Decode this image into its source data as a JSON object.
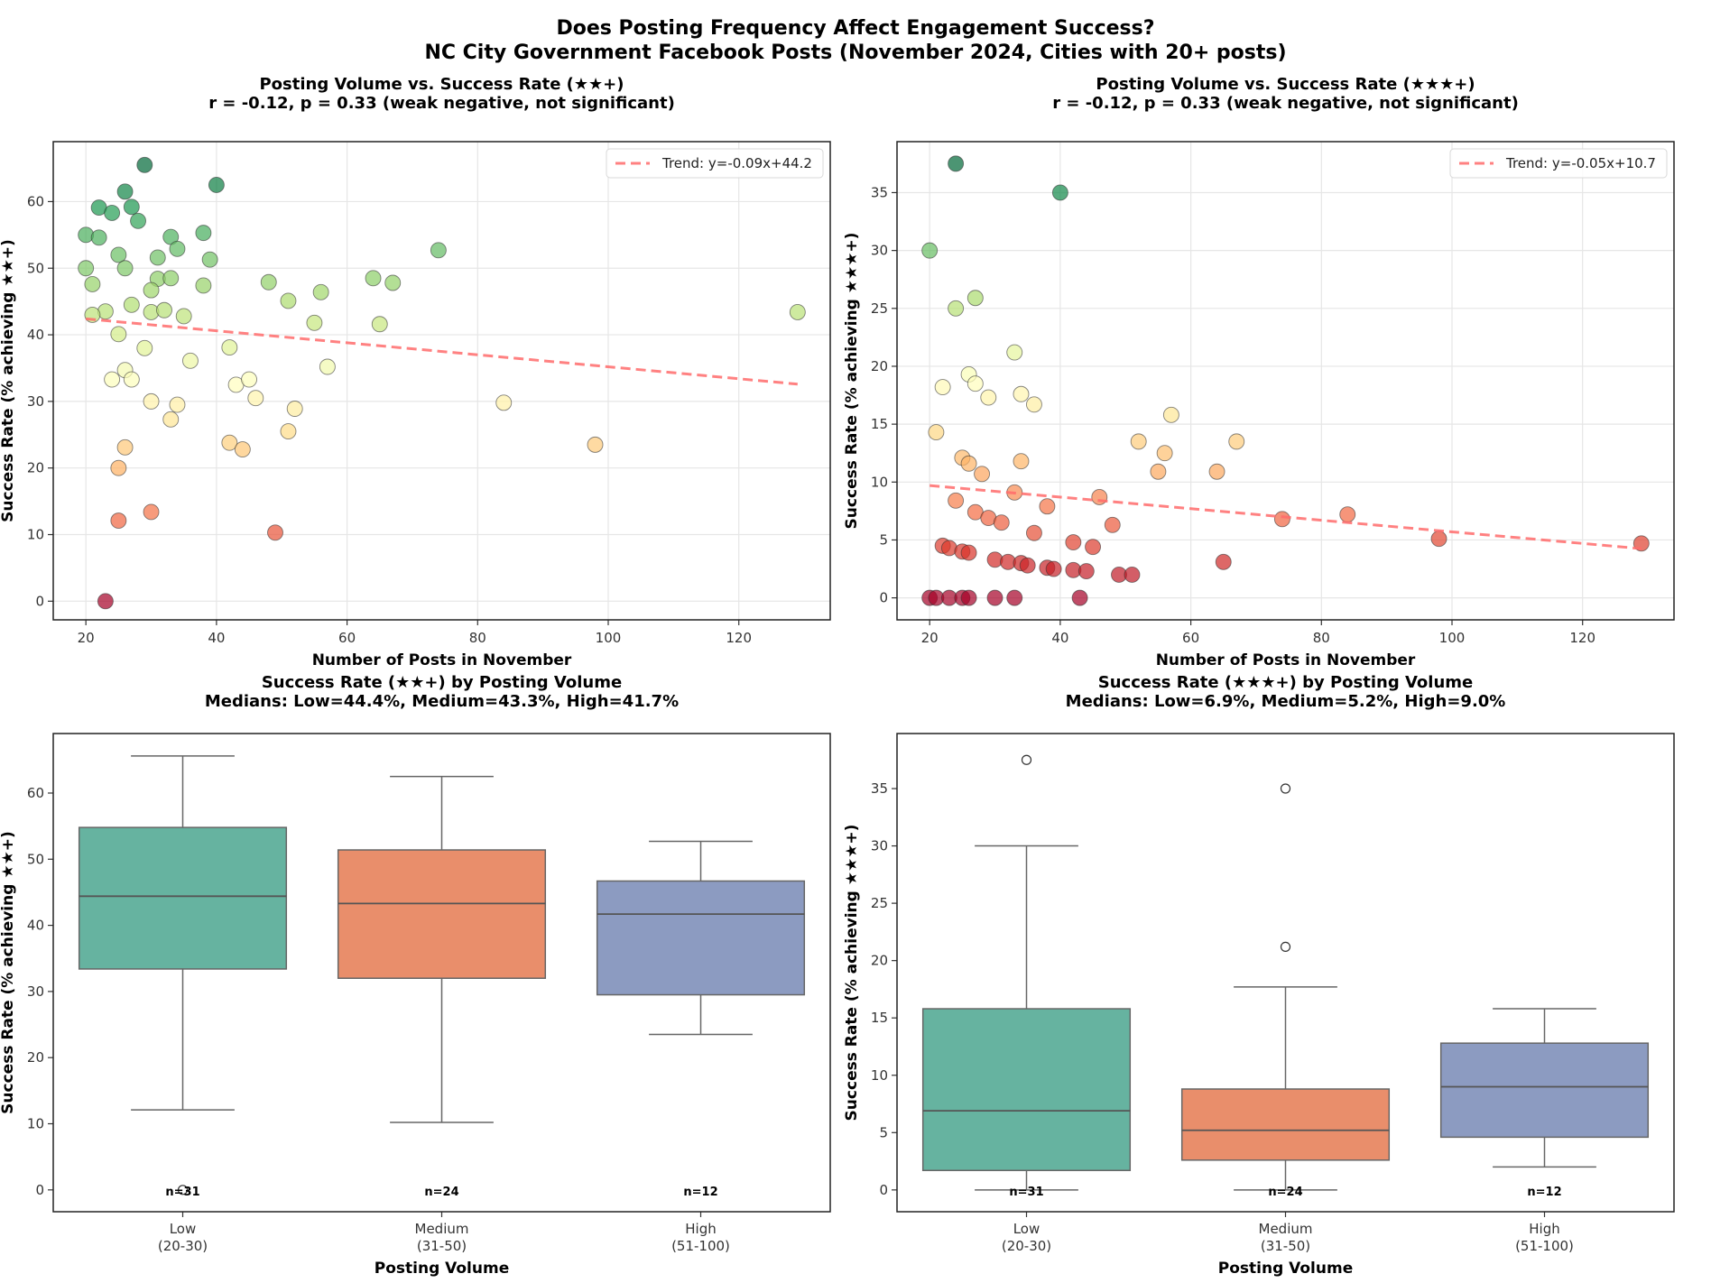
{
  "suptitle": {
    "line1": "Does Posting Frequency Affect Engagement Success?",
    "line2": "NC City Government Facebook Posts (November 2024, Cities with 20+ posts)"
  },
  "chart_data": [
    {
      "id": "scatter3",
      "type": "scatter",
      "title": "Posting Volume vs. Success Rate (★★+)",
      "subtitle": "r = -0.12, p = 0.33 (weak negative, not significant)",
      "xlabel": "Number of Posts in November",
      "ylabel": "Success Rate (% achieving ★★+)",
      "xlim": [
        15,
        134
      ],
      "ylim": [
        -2.8,
        69
      ],
      "xticks": [
        20,
        40,
        60,
        80,
        100,
        120
      ],
      "yticks": [
        0,
        10,
        20,
        30,
        40,
        50,
        60
      ],
      "grid": true,
      "colormap": "RdYlGn",
      "color_range": [
        0,
        65.5
      ],
      "legend": {
        "label": "Trend: y=-0.09x+44.2",
        "position": "top-right"
      },
      "trend": {
        "slope": -0.09,
        "intercept": 44.2,
        "x_range": [
          20,
          129
        ]
      },
      "points": [
        [
          29,
          65.5
        ],
        [
          40,
          62.5
        ],
        [
          26,
          61.5
        ],
        [
          22,
          59.1
        ],
        [
          24,
          58.3
        ],
        [
          27,
          59.2
        ],
        [
          28,
          57.1
        ],
        [
          20,
          55.0
        ],
        [
          22,
          54.6
        ],
        [
          33,
          54.7
        ],
        [
          38,
          55.3
        ],
        [
          34,
          52.9
        ],
        [
          25,
          52.0
        ],
        [
          31,
          51.6
        ],
        [
          39,
          51.3
        ],
        [
          20,
          50.0
        ],
        [
          26,
          50.0
        ],
        [
          21,
          47.6
        ],
        [
          31,
          48.4
        ],
        [
          33,
          48.5
        ],
        [
          38,
          47.4
        ],
        [
          30,
          46.7
        ],
        [
          48,
          47.9
        ],
        [
          51,
          45.1
        ],
        [
          56,
          46.4
        ],
        [
          64,
          48.5
        ],
        [
          67,
          47.8
        ],
        [
          74,
          52.7
        ],
        [
          27,
          44.5
        ],
        [
          23,
          43.5
        ],
        [
          21,
          43.0
        ],
        [
          30,
          43.4
        ],
        [
          32,
          43.7
        ],
        [
          35,
          42.8
        ],
        [
          55,
          41.8
        ],
        [
          65,
          41.6
        ],
        [
          129,
          43.4
        ],
        [
          25,
          40.1
        ],
        [
          29,
          38.0
        ],
        [
          42,
          38.1
        ],
        [
          36,
          36.1
        ],
        [
          57,
          35.2
        ],
        [
          26,
          34.7
        ],
        [
          24,
          33.3
        ],
        [
          27,
          33.3
        ],
        [
          43,
          32.5
        ],
        [
          45,
          33.3
        ],
        [
          46,
          30.5
        ],
        [
          30,
          30.0
        ],
        [
          34,
          29.5
        ],
        [
          33,
          27.3
        ],
        [
          52,
          28.9
        ],
        [
          84,
          29.8
        ],
        [
          51,
          25.5
        ],
        [
          42,
          23.8
        ],
        [
          44,
          22.8
        ],
        [
          26,
          23.1
        ],
        [
          98,
          23.5
        ],
        [
          25,
          20.0
        ],
        [
          25,
          12.1
        ],
        [
          30,
          13.4
        ],
        [
          49,
          10.3
        ],
        [
          23,
          0.0
        ]
      ]
    },
    {
      "id": "scatter4",
      "type": "scatter",
      "title": "Posting Volume vs. Success Rate (★★★+)",
      "subtitle": "r = -0.12, p = 0.33 (weak negative, not significant)",
      "xlabel": "Number of Posts in November",
      "ylabel": "Success Rate (% achieving ★★★+)",
      "xlim": [
        15,
        134
      ],
      "ylim": [
        -1.9,
        39.4
      ],
      "xticks": [
        20,
        40,
        60,
        80,
        100,
        120
      ],
      "yticks": [
        0,
        5,
        10,
        15,
        20,
        25,
        30,
        35
      ],
      "grid": true,
      "colormap": "RdYlGn",
      "color_range": [
        0,
        37.5
      ],
      "legend": {
        "label": "Trend: y=-0.05x+10.7",
        "position": "top-right"
      },
      "trend": {
        "slope": -0.05,
        "intercept": 10.7,
        "x_range": [
          20,
          129
        ]
      },
      "points": [
        [
          24,
          37.5
        ],
        [
          40,
          35.0
        ],
        [
          20,
          30.0
        ],
        [
          27,
          25.9
        ],
        [
          24,
          25.0
        ],
        [
          33,
          21.2
        ],
        [
          26,
          19.3
        ],
        [
          27,
          18.5
        ],
        [
          22,
          18.2
        ],
        [
          29,
          17.3
        ],
        [
          34,
          17.6
        ],
        [
          36,
          16.7
        ],
        [
          57,
          15.8
        ],
        [
          21,
          14.3
        ],
        [
          52,
          13.5
        ],
        [
          67,
          13.5
        ],
        [
          56,
          12.5
        ],
        [
          25,
          12.1
        ],
        [
          26,
          11.6
        ],
        [
          34,
          11.8
        ],
        [
          28,
          10.7
        ],
        [
          55,
          10.9
        ],
        [
          64,
          10.9
        ],
        [
          33,
          9.1
        ],
        [
          46,
          8.7
        ],
        [
          24,
          8.4
        ],
        [
          38,
          7.9
        ],
        [
          27,
          7.4
        ],
        [
          29,
          6.9
        ],
        [
          31,
          6.5
        ],
        [
          48,
          6.3
        ],
        [
          74,
          6.8
        ],
        [
          84,
          7.2
        ],
        [
          36,
          5.6
        ],
        [
          22,
          4.5
        ],
        [
          23,
          4.3
        ],
        [
          25,
          4.0
        ],
        [
          26,
          3.9
        ],
        [
          42,
          4.8
        ],
        [
          45,
          4.4
        ],
        [
          98,
          5.1
        ],
        [
          129,
          4.7
        ],
        [
          30,
          3.3
        ],
        [
          32,
          3.1
        ],
        [
          34,
          3.0
        ],
        [
          35,
          2.8
        ],
        [
          65,
          3.1
        ],
        [
          38,
          2.6
        ],
        [
          39,
          2.5
        ],
        [
          42,
          2.4
        ],
        [
          44,
          2.3
        ],
        [
          49,
          2.0
        ],
        [
          51,
          2.0
        ],
        [
          20,
          0
        ],
        [
          21,
          0
        ],
        [
          23,
          0
        ],
        [
          25,
          0
        ],
        [
          26,
          0
        ],
        [
          30,
          0
        ],
        [
          33,
          0
        ],
        [
          43,
          0
        ]
      ]
    },
    {
      "id": "box3",
      "type": "box",
      "title": "Success Rate (★★+) by Posting Volume",
      "subtitle": "Medians: Low=44.4%, Medium=43.3%, High=41.7%",
      "xlabel": "Posting Volume",
      "ylabel": "Success Rate (% achieving ★★+)",
      "ylim": [
        -3.3,
        69
      ],
      "yticks": [
        0,
        10,
        20,
        30,
        40,
        50,
        60
      ],
      "categories": [
        {
          "label": "Low",
          "range": "(20-30)",
          "n": "n=31",
          "color": "#66b3a0",
          "whislo": 12.1,
          "q1": 33.4,
          "med": 44.4,
          "q3": 54.8,
          "whishi": 65.6,
          "fliers": [
            0.0
          ]
        },
        {
          "label": "Medium",
          "range": "(31-50)",
          "n": "n=24",
          "color": "#e98e6b",
          "whislo": 10.2,
          "q1": 32.0,
          "med": 43.3,
          "q3": 51.4,
          "whishi": 62.5,
          "fliers": []
        },
        {
          "label": "High",
          "range": "(51-100)",
          "n": "n=12",
          "color": "#8c9bc1",
          "whislo": 23.5,
          "q1": 29.5,
          "med": 41.7,
          "q3": 46.7,
          "whishi": 52.7,
          "fliers": []
        }
      ]
    },
    {
      "id": "box4",
      "type": "box",
      "title": "Success Rate (★★★+) by Posting Volume",
      "subtitle": "Medians: Low=6.9%, Medium=5.2%, High=9.0%",
      "xlabel": "Posting Volume",
      "ylabel": "Success Rate (% achieving ★★★+)",
      "ylim": [
        -1.9,
        39.8
      ],
      "yticks": [
        0,
        5,
        10,
        15,
        20,
        25,
        30,
        35
      ],
      "categories": [
        {
          "label": "Low",
          "range": "(20-30)",
          "n": "n=31",
          "color": "#66b3a0",
          "whislo": 0.0,
          "q1": 1.7,
          "med": 6.9,
          "q3": 15.8,
          "whishi": 30.0,
          "fliers": [
            37.5
          ]
        },
        {
          "label": "Medium",
          "range": "(31-50)",
          "n": "n=24",
          "color": "#e98e6b",
          "whislo": 0.0,
          "q1": 2.6,
          "med": 5.2,
          "q3": 8.8,
          "whishi": 17.7,
          "fliers": [
            35.0,
            21.2
          ]
        },
        {
          "label": "High",
          "range": "(51-100)",
          "n": "n=12",
          "color": "#8c9bc1",
          "whislo": 2.0,
          "q1": 4.6,
          "med": 9.0,
          "q3": 12.8,
          "whishi": 15.8,
          "fliers": []
        }
      ]
    }
  ]
}
